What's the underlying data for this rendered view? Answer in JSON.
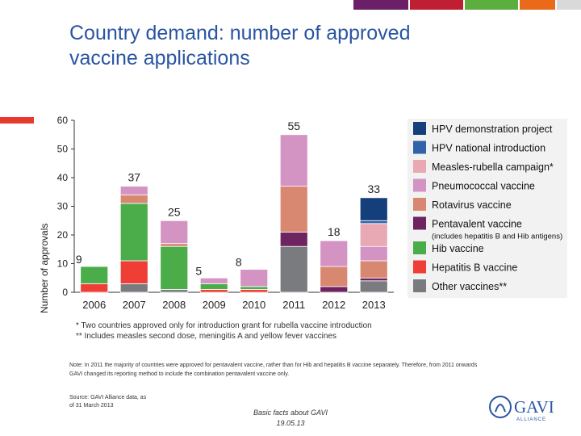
{
  "slide": {
    "title_line1": "Country demand: number of approved",
    "title_line2": "vaccine applications",
    "footnote1": "*   Two countries approved only for introduction grant for rubella vaccine introduction",
    "footnote2": "** Includes measles second dose, meningitis A and yellow fever vaccines",
    "note": "Note: In 2011 the majority of countries were approved for pentavalent vaccine, rather than for Hib and hepatitis B vaccine separately. Therefore, from 2011 onwards GAVI changed its reporting method to include the combination pentavalent vaccine only.",
    "source": "Source: GAVI Alliance data, as of 31 March 2013",
    "footer_line1": "Basic facts about GAVI",
    "footer_line2": "19.05.13",
    "logo_text": "GAVI",
    "logo_subtext": "ALLIANCE",
    "colors": {
      "title": "#2a55a3",
      "topbar": [
        "#6b1f66",
        "#c01f33",
        "#5cae3f",
        "#e96b1a",
        "#d9d9d9"
      ]
    }
  },
  "chart_data": {
    "type": "bar",
    "stacked": true,
    "ylabel": "Number of approvals",
    "ylim": [
      0,
      60
    ],
    "yticks": [
      0,
      10,
      20,
      30,
      40,
      50,
      60
    ],
    "grid": false,
    "legend_position": "right",
    "categories": [
      "2006",
      "2007",
      "2008",
      "2009",
      "2010",
      "2011",
      "2012",
      "2013"
    ],
    "totals": [
      9,
      37,
      25,
      5,
      8,
      55,
      18,
      33
    ],
    "series": [
      {
        "name": "Other vaccines**",
        "color": "#7a7b7e",
        "values": [
          0,
          3,
          1,
          0,
          0,
          16,
          0,
          4
        ]
      },
      {
        "name": "Hepatitis B vaccine",
        "color": "#ee3e36",
        "values": [
          3,
          8,
          0,
          1,
          1,
          0,
          0,
          0
        ]
      },
      {
        "name": "Hib vaccine",
        "color": "#4aad4a",
        "values": [
          6,
          20,
          15,
          2,
          1,
          0,
          0,
          0
        ]
      },
      {
        "name": "Pentavalent vaccine",
        "note": "(includes hepatitis B and Hib antigens)",
        "color": "#6e2461",
        "values": [
          0,
          0,
          0,
          0,
          0,
          5,
          2,
          1
        ]
      },
      {
        "name": "Rotavirus vaccine",
        "color": "#d88770",
        "values": [
          0,
          3,
          1,
          0,
          0,
          16,
          7,
          6
        ]
      },
      {
        "name": "Pneumococcal vaccine",
        "color": "#d394c4",
        "values": [
          0,
          3,
          8,
          2,
          6,
          18,
          9,
          5
        ]
      },
      {
        "name": "Measles-rubella campaign*",
        "color": "#e8a9b4",
        "values": [
          0,
          0,
          0,
          0,
          0,
          0,
          0,
          8
        ]
      },
      {
        "name": "HPV national introduction",
        "color": "#2f62a8",
        "values": [
          0,
          0,
          0,
          0,
          0,
          0,
          0,
          1
        ]
      },
      {
        "name": "HPV demonstration project",
        "color": "#143f7b",
        "values": [
          0,
          0,
          0,
          0,
          0,
          0,
          0,
          8
        ]
      }
    ]
  }
}
